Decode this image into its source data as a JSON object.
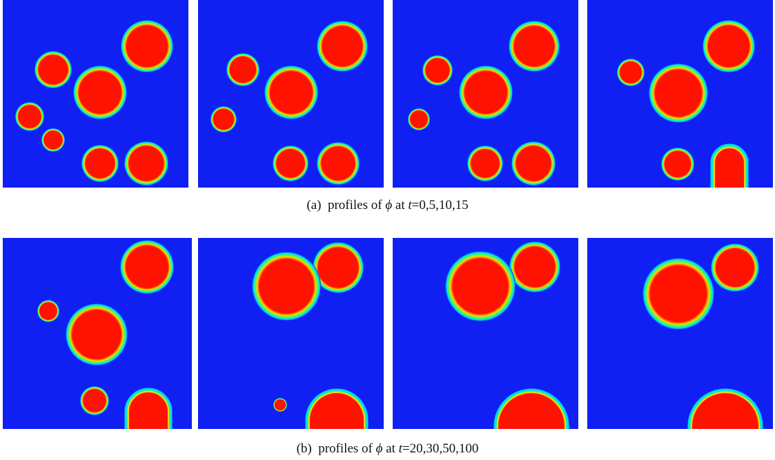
{
  "captions": {
    "a": {
      "label": "(a)",
      "text1": "profiles of",
      "phi": "ϕ",
      "text2": "at",
      "t": "t",
      "eq": "=",
      "values": "0,5,10,15"
    },
    "b": {
      "label": "(b)",
      "text1": "profiles of",
      "phi": "ϕ",
      "text2": "at",
      "t": "t",
      "eq": "=",
      "values": "20,30,50,100"
    }
  },
  "colors": {
    "background": "#1020f2",
    "droplet_core": "#ff1200",
    "rim_outer": "#00d8ff",
    "rim_mid": "#33ff66",
    "rim_inner": "#ffd200"
  },
  "panels": [
    {
      "time": "0"
    },
    {
      "time": "5"
    },
    {
      "time": "10"
    },
    {
      "time": "15"
    },
    {
      "time": "20"
    },
    {
      "time": "30"
    },
    {
      "time": "50"
    },
    {
      "time": "100"
    }
  ]
}
